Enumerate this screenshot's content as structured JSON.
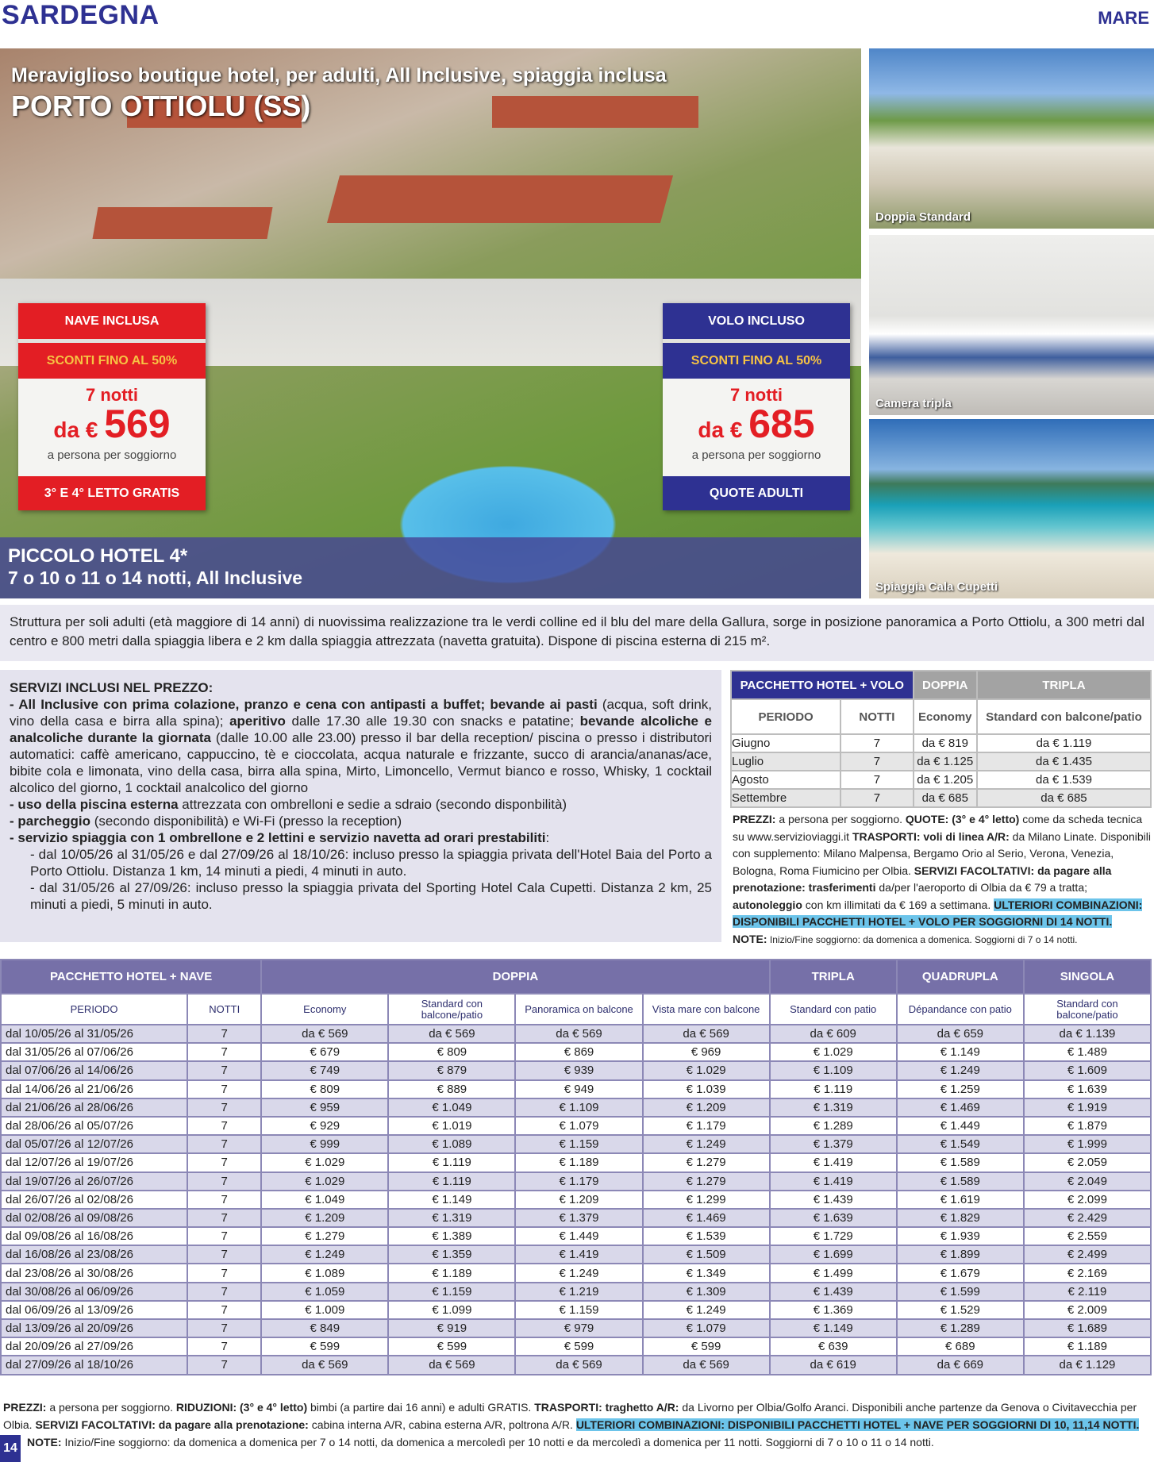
{
  "header": {
    "region": "SARDEGNA",
    "category": "MARE"
  },
  "hero": {
    "subtitle": "Meraviglioso boutique hotel, per adulti, All Inclusive, spiaggia inclusa",
    "title": "PORTO OTTIOLU (SS)",
    "hotel_name": "PICCOLO HOTEL 4*",
    "durations": "7 o 10 o 11 o 14 notti, All Inclusive"
  },
  "offer_nave": {
    "banner": "NAVE INCLUSA",
    "discount": "SCONTI FINO AL 50%",
    "nights": "7 notti",
    "prefix": "da €",
    "price": "569",
    "per": "a persona per soggiorno",
    "footer": "3° E 4° LETTO GRATIS"
  },
  "offer_volo": {
    "banner": "VOLO INCLUSO",
    "discount": "SCONTI FINO AL 50%",
    "nights": "7 notti",
    "prefix": "da €",
    "price": "685",
    "per": "a persona per soggiorno",
    "footer": "QUOTE ADULTI"
  },
  "photos": [
    {
      "caption": "Doppia Standard"
    },
    {
      "caption": "Camera tripla"
    },
    {
      "caption": "Spiaggia Cala Cupetti"
    }
  ],
  "description": "Struttura per soli adulti (età maggiore di 14 anni) di nuovissima realizzazione tra le verdi colline ed il blu del mare della Gallura, sorge in posizione panoramica a Porto Ottiolu, a 300 metri dal centro e 800 metri dalla spiaggia libera e 2 km dalla spiaggia attrezzata (navetta gratuita). Dispone di piscina esterna di 215 m².",
  "services": {
    "title": "SERVIZI INCLUSI NEL PREZZO:",
    "i1b": "- All Inclusive con prima colazione, pranzo e cena con antipasti a buffet; bevande ai pasti",
    "i1": " (acqua, soft drink, vino della casa e birra alla spina); ",
    "i1b2": "aperitivo",
    "i1c": " dalle 17.30 alle 19.30 con snacks e patatine; ",
    "i1b3": "bevande alcoliche e analcoliche durante la giornata",
    "i1d": " (dalle 10.00 alle 23.00) presso il bar della reception/ piscina o presso i distributori automatici: caffè americano, cappuccino, tè e cioccolata, acqua naturale e frizzante, succo di arancia/ananas/ace, bibite cola e limonata, vino della casa, birra alla spina, Mirto, Limoncello, Vermut bianco e rosso, Whisky, 1 cocktail alcolico del giorno, 1 cocktail analcolico del giorno",
    "i2b": "- uso della piscina esterna",
    "i2": " attrezzata con ombrelloni e sedie a sdraio (secondo disponbilità)",
    "i3b": "- parcheggio",
    "i3": " (secondo disponibilità) e Wi-Fi (presso la reception)",
    "i4b": "- servizio spiaggia con 1 ombrellone e 2 lettini e servizio navetta ad orari prestabiliti",
    "i4": ":",
    "s1": "- dal 10/05/26 al 31/05/26 e dal 27/09/26 al 18/10/26: incluso presso la spiaggia privata dell'Hotel Baia del Porto a Porto Ottiolu. Distanza 1 km, 14 minuti a piedi, 4 minuti in auto.",
    "s2": "- dal 31/05/26 al 27/09/26: incluso presso la spiaggia privata del Sporting Hotel Cala Cupetti. Distanza 2 km, 25 minuti a piedi, 5 minuti in auto."
  },
  "volo_table": {
    "title": "PACCHETTO HOTEL + VOLO",
    "groups": [
      "DOPPIA",
      "TRIPLA"
    ],
    "columns": [
      "PERIODO",
      "NOTTI",
      "Economy",
      "Standard con balcone/patio"
    ],
    "rows": [
      [
        "Giugno",
        "7",
        "da € 819",
        "da € 1.119"
      ],
      [
        "Luglio",
        "7",
        "da € 1.125",
        "da € 1.435"
      ],
      [
        "Agosto",
        "7",
        "da € 1.205",
        "da € 1.539"
      ],
      [
        "Settembre",
        "7",
        "da € 685",
        "da € 685"
      ]
    ],
    "notes": {
      "a": "PREZZI:",
      "b": " a persona per soggiorno. ",
      "c": "QUOTE: (3° e 4° letto)",
      "d": " come da scheda tecnica su www.servizioviaggi.it ",
      "e": "TRASPORTI: voli di linea A/R:",
      "f": " da Milano Linate. Disponibili con supplemento: Milano Malpensa, Bergamo Orio al Serio, Verona, Venezia, Bologna, Roma Fiumicino per Olbia. ",
      "g": "SERVIZI FACOLTATIVI: da pagare alla prenotazione: trasferimenti",
      "h": " da/per l'aeroporto di Olbia da € 79 a tratta; ",
      "i": "autonoleggio",
      "j": " con km illimitati da € 169 a settimana. ",
      "k": "ULTERIORI COMBINAZIONI: DISPONIBILI PACCHETTI HOTEL + VOLO PER SOGGIORNI DI 14 NOTTI.",
      "l": "NOTE:",
      "m": " Inizio/Fine soggiorno: da domenica a domenica. Soggiorni di 7 o 14 notti."
    }
  },
  "nave_table": {
    "title": "PACCHETTO HOTEL + NAVE",
    "groups": [
      "DOPPIA",
      "TRIPLA",
      "QUADRUPLA",
      "SINGOLA"
    ],
    "columns": [
      "PERIODO",
      "NOTTI",
      "Economy",
      "Standard con balcone/patio",
      "Panoramica on balcone",
      "Vista mare con balcone",
      "Standard con patio",
      "Dépandance con patio",
      "Standard con balcone/patio"
    ],
    "rows": [
      [
        "dal 10/05/26 al 31/05/26",
        "7",
        "da € 569",
        "da € 569",
        "da € 569",
        "da € 569",
        "da € 609",
        "da € 659",
        "da € 1.139"
      ],
      [
        "dal 31/05/26 al 07/06/26",
        "7",
        "€ 679",
        "€ 809",
        "€ 869",
        "€ 969",
        "€ 1.029",
        "€ 1.149",
        "€ 1.489"
      ],
      [
        "dal 07/06/26 al 14/06/26",
        "7",
        "€ 749",
        "€ 879",
        "€ 939",
        "€ 1.029",
        "€ 1.109",
        "€ 1.249",
        "€ 1.609"
      ],
      [
        "dal 14/06/26 al 21/06/26",
        "7",
        "€ 809",
        "€ 889",
        "€ 949",
        "€ 1.039",
        "€ 1.119",
        "€ 1.259",
        "€ 1.639"
      ],
      [
        "dal 21/06/26 al 28/06/26",
        "7",
        "€ 959",
        "€ 1.049",
        "€ 1.109",
        "€ 1.209",
        "€ 1.319",
        "€ 1.469",
        "€ 1.919"
      ],
      [
        "dal 28/06/26 al 05/07/26",
        "7",
        "€ 929",
        "€ 1.019",
        "€ 1.079",
        "€ 1.179",
        "€ 1.289",
        "€ 1.449",
        "€ 1.879"
      ],
      [
        "dal 05/07/26 al 12/07/26",
        "7",
        "€ 999",
        "€ 1.089",
        "€ 1.159",
        "€ 1.249",
        "€ 1.379",
        "€ 1.549",
        "€ 1.999"
      ],
      [
        "dal 12/07/26 al 19/07/26",
        "7",
        "€ 1.029",
        "€ 1.119",
        "€ 1.189",
        "€ 1.279",
        "€ 1.419",
        "€ 1.589",
        "€ 2.059"
      ],
      [
        "dal 19/07/26 al 26/07/26",
        "7",
        "€ 1.029",
        "€ 1.119",
        "€ 1.179",
        "€ 1.279",
        "€ 1.419",
        "€ 1.589",
        "€ 2.049"
      ],
      [
        "dal 26/07/26 al 02/08/26",
        "7",
        "€ 1.049",
        "€ 1.149",
        "€ 1.209",
        "€ 1.299",
        "€ 1.439",
        "€ 1.619",
        "€ 2.099"
      ],
      [
        "dal 02/08/26 al 09/08/26",
        "7",
        "€ 1.209",
        "€ 1.319",
        "€ 1.379",
        "€ 1.469",
        "€ 1.639",
        "€ 1.829",
        "€ 2.429"
      ],
      [
        "dal 09/08/26 al 16/08/26",
        "7",
        "€ 1.279",
        "€ 1.389",
        "€ 1.449",
        "€ 1.539",
        "€ 1.729",
        "€ 1.939",
        "€ 2.559"
      ],
      [
        "dal 16/08/26 al 23/08/26",
        "7",
        "€ 1.249",
        "€ 1.359",
        "€ 1.419",
        "€ 1.509",
        "€ 1.699",
        "€ 1.899",
        "€ 2.499"
      ],
      [
        "dal 23/08/26 al 30/08/26",
        "7",
        "€ 1.089",
        "€ 1.189",
        "€ 1.249",
        "€ 1.349",
        "€ 1.499",
        "€ 1.679",
        "€ 2.169"
      ],
      [
        "dal 30/08/26 al 06/09/26",
        "7",
        "€ 1.059",
        "€ 1.159",
        "€ 1.219",
        "€ 1.309",
        "€ 1.439",
        "€ 1.599",
        "€ 2.119"
      ],
      [
        "dal 06/09/26 al 13/09/26",
        "7",
        "€ 1.009",
        "€ 1.099",
        "€ 1.159",
        "€ 1.249",
        "€ 1.369",
        "€ 1.529",
        "€ 2.009"
      ],
      [
        "dal 13/09/26 al 20/09/26",
        "7",
        "€ 849",
        "€ 919",
        "€ 979",
        "€ 1.079",
        "€ 1.149",
        "€ 1.289",
        "€ 1.689"
      ],
      [
        "dal 20/09/26 al 27/09/26",
        "7",
        "€ 599",
        "€ 599",
        "€ 599",
        "€ 599",
        "€ 639",
        "€ 689",
        "€ 1.189"
      ],
      [
        "dal 27/09/26 al 18/10/26",
        "7",
        "da € 569",
        "da € 569",
        "da € 569",
        "da € 569",
        "da € 619",
        "da € 669",
        "da € 1.129"
      ]
    ]
  },
  "footer": {
    "a": "PREZZI:",
    "b": " a persona per soggiorno. ",
    "c": "RIDUZIONI: (3° e 4° letto)",
    "d": " bimbi (a partire dai 16 anni) e adulti GRATIS. ",
    "e": "TRASPORTI: traghetto A/R:",
    "f": " da Livorno per Olbia/Golfo Aranci. Disponibili anche partenze da Genova o Civitavecchia per Olbia. ",
    "g": "SERVIZI FACOLTATIVI: da pagare alla prenotazione:",
    "h": " cabina interna A/R, cabina esterna A/R, poltrona A/R. ",
    "k": "ULTERIORI COMBINAZIONI: DISPONIBILI PACCHETTI HOTEL + NAVE PER SOGGIORNI DI 10, 11,14 NOTTI.",
    "l": "NOTE:",
    "m": " Inizio/Fine soggiorno: da domenica a domenica per 7 o 14 notti, da domenica a mercoledì per 10 notti e da mercoledì a domenica per 11 notti. Soggiorni di 7 o 10 o 11 o 14 notti."
  },
  "page_number": "14",
  "colors": {
    "red": "#e31e24",
    "navy": "#2e3192",
    "purple": "#7670a8",
    "row_alt": "#d9d8ea",
    "highlight": "#6cc4ea"
  }
}
